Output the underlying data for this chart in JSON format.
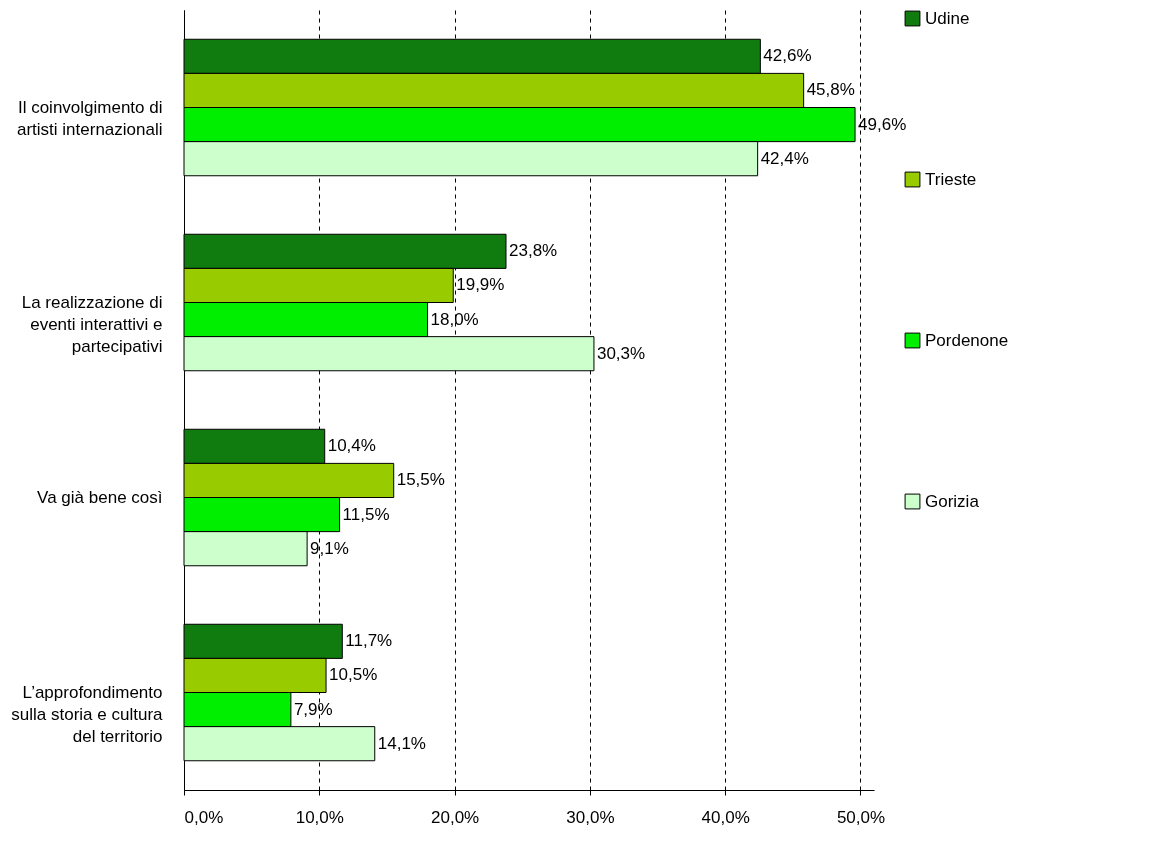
{
  "chart_data": {
    "type": "bar",
    "orientation": "horizontal",
    "categories": [
      "Il coinvolgimento di artisti internazionali",
      "La realizzazione di eventi interattivi e partecipativi",
      "Va già bene così",
      "L’approfondimento sulla storia e cultura del territorio"
    ],
    "series": [
      {
        "name": "Udine",
        "color": "#107c10",
        "values": [
          42.6,
          23.8,
          10.4,
          11.7
        ],
        "value_labels": [
          "42,6%",
          "23,8%",
          "10,4%",
          "11,7%"
        ]
      },
      {
        "name": "Trieste",
        "color": "#99cc00",
        "values": [
          45.8,
          19.9,
          15.5,
          10.5
        ],
        "value_labels": [
          "45,8%",
          "19,9%",
          "15,5%",
          "10,5%"
        ]
      },
      {
        "name": "Pordenone",
        "color": "#00ee00",
        "values": [
          49.6,
          18.0,
          11.5,
          7.9
        ],
        "value_labels": [
          "49,6%",
          "18,0%",
          "11,5%",
          "7,9%"
        ]
      },
      {
        "name": "Gorizia",
        "color": "#ccffcc",
        "values": [
          42.4,
          30.3,
          9.1,
          14.1
        ],
        "value_labels": [
          "42,4%",
          "30,3%",
          "9,1%",
          "14,1%"
        ]
      }
    ],
    "xlim": [
      0,
      51
    ],
    "xticks": [
      {
        "value": 0,
        "label": "0,0%"
      },
      {
        "value": 10,
        "label": "10,0%"
      },
      {
        "value": 20,
        "label": "20,0%"
      },
      {
        "value": 30,
        "label": "30,0%"
      },
      {
        "value": 40,
        "label": "40,0%"
      },
      {
        "value": 50,
        "label": "50,0%"
      }
    ],
    "grid": "x",
    "legend": "right"
  }
}
